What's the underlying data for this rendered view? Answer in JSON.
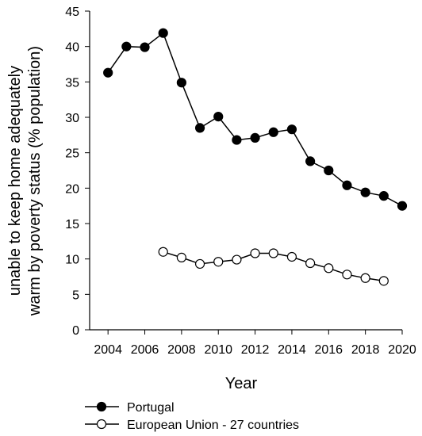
{
  "chart_data": {
    "type": "line",
    "title": "",
    "xlabel": "Year",
    "ylabel_lines": [
      "unable to keep home adequately",
      "warm by poverty status (% population)"
    ],
    "xlim": [
      2003,
      2020
    ],
    "ylim": [
      0,
      45
    ],
    "x_ticks": [
      2004,
      2006,
      2008,
      2010,
      2012,
      2014,
      2016,
      2018,
      2020
    ],
    "y_ticks": [
      0,
      5,
      10,
      15,
      20,
      25,
      30,
      35,
      40,
      45
    ],
    "grid": false,
    "legend_position": "bottom-left",
    "series": [
      {
        "name": "Portugal",
        "marker": "filled-circle",
        "color": "#000000",
        "x": [
          2004,
          2005,
          2006,
          2007,
          2008,
          2009,
          2010,
          2011,
          2012,
          2013,
          2014,
          2015,
          2016,
          2017,
          2018,
          2019,
          2020
        ],
        "values": [
          36.3,
          40.0,
          39.9,
          41.9,
          34.9,
          28.5,
          30.1,
          26.8,
          27.1,
          27.9,
          28.3,
          23.8,
          22.5,
          20.4,
          19.4,
          18.9,
          17.5
        ]
      },
      {
        "name": "European Union - 27 countries",
        "marker": "open-circle",
        "color": "#000000",
        "x": [
          2007,
          2008,
          2009,
          2010,
          2011,
          2012,
          2013,
          2014,
          2015,
          2016,
          2017,
          2018,
          2019
        ],
        "values": [
          11.0,
          10.2,
          9.3,
          9.6,
          9.9,
          10.8,
          10.8,
          10.3,
          9.4,
          8.7,
          7.8,
          7.3,
          6.9
        ]
      }
    ]
  }
}
